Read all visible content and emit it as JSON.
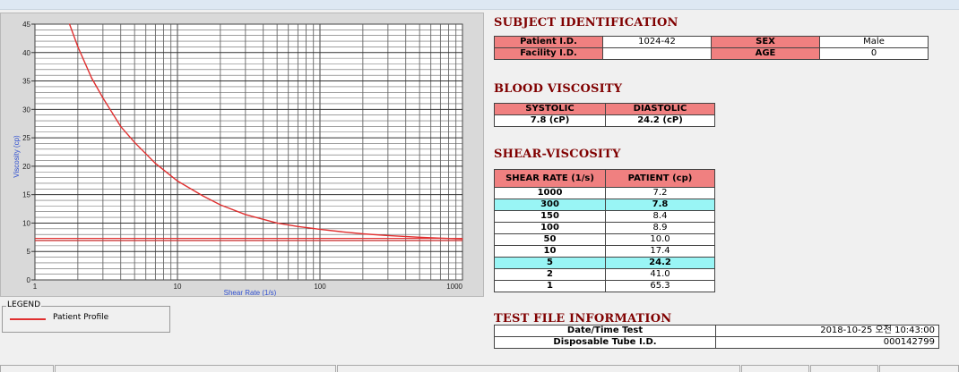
{
  "legend": {
    "title": "LEGEND",
    "items": [
      {
        "label": "Patient Profile",
        "color": "#e03030"
      }
    ]
  },
  "subject": {
    "title": "SUBJECT IDENTIFICATION",
    "patient_id_label": "Patient I.D.",
    "patient_id": "1024-42",
    "sex_label": "SEX",
    "sex": "Male",
    "facility_id_label": "Facility I.D.",
    "facility_id": "",
    "age_label": "AGE",
    "age": "0"
  },
  "blood": {
    "title": "BLOOD VISCOSITY",
    "systolic_label": "SYSTOLIC",
    "systolic": "7.8 (cP)",
    "diastolic_label": "DIASTOLIC",
    "diastolic": "24.2 (cP)"
  },
  "shear": {
    "title": "SHEAR-VISCOSITY",
    "col_rate": "SHEAR RATE (1/s)",
    "col_patient": "PATIENT (cp)",
    "rows": [
      {
        "rate": "1000",
        "value": "7.2",
        "highlight": false
      },
      {
        "rate": "300",
        "value": "7.8",
        "highlight": true
      },
      {
        "rate": "150",
        "value": "8.4",
        "highlight": false
      },
      {
        "rate": "100",
        "value": "8.9",
        "highlight": false
      },
      {
        "rate": "50",
        "value": "10.0",
        "highlight": false
      },
      {
        "rate": "10",
        "value": "17.4",
        "highlight": false
      },
      {
        "rate": "5",
        "value": "24.2",
        "highlight": true
      },
      {
        "rate": "2",
        "value": "41.0",
        "highlight": false
      },
      {
        "rate": "1",
        "value": "65.3",
        "highlight": false
      }
    ]
  },
  "file": {
    "title": "TEST FILE INFORMATION",
    "date_label": "Date/Time Test",
    "date_value": "2018-10-25  오전 10:43:00",
    "tube_label": "Disposable Tube I.D.",
    "tube_value": "000142799"
  },
  "chart_data": {
    "type": "line",
    "xlabel": "Shear Rate (1/s)",
    "ylabel": "Viscosity (cp)",
    "x_scale": "log",
    "xlim": [
      1,
      1000
    ],
    "ylim": [
      0,
      45
    ],
    "x_ticks": [
      "1",
      "10",
      "100",
      "1000"
    ],
    "y_ticks": [
      "0",
      "5",
      "10",
      "15",
      "20",
      "25",
      "30",
      "35",
      "40",
      "45"
    ],
    "grid": true,
    "series": [
      {
        "name": "Patient Profile",
        "color": "#e03030",
        "x": [
          1.75,
          2,
          2.5,
          3,
          4,
          5,
          7,
          10,
          15,
          20,
          30,
          50,
          70,
          100,
          150,
          200,
          300,
          500,
          700,
          1000
        ],
        "y": [
          45,
          41.0,
          35.5,
          32,
          27,
          24.2,
          20.5,
          17.4,
          14.8,
          13.2,
          11.5,
          10.0,
          9.4,
          8.9,
          8.4,
          8.1,
          7.8,
          7.5,
          7.35,
          7.2
        ]
      },
      {
        "color": "#e03030",
        "x": [
          1,
          1000
        ],
        "y": [
          6.9,
          6.9
        ]
      },
      {
        "color": "#e03030",
        "x": [
          1,
          1000
        ],
        "y": [
          7.3,
          7.3
        ]
      }
    ]
  }
}
